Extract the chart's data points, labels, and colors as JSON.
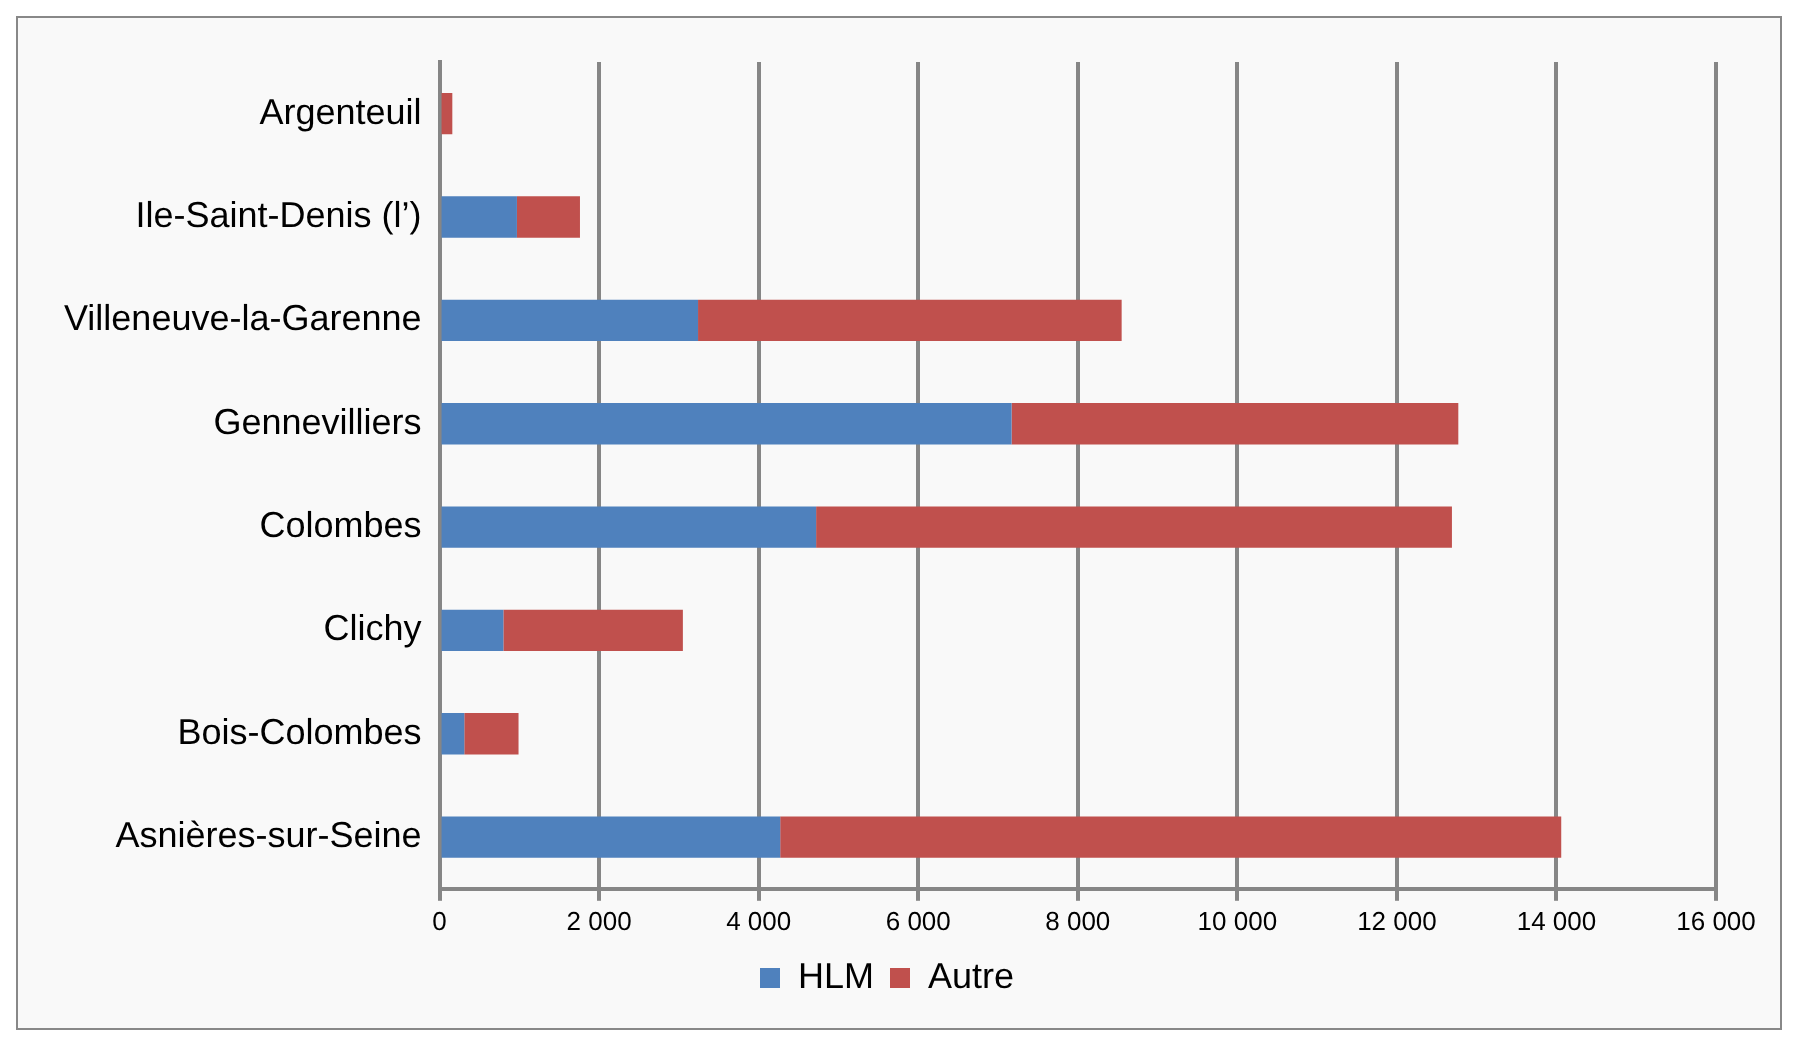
{
  "chart_data": {
    "type": "bar",
    "orientation": "horizontal",
    "stacked": true,
    "categories": [
      "Argenteuil",
      "Ile-Saint-Denis (l’)",
      "Villeneuve-la-Garenne",
      "Gennevilliers",
      "Colombes",
      "Clichy",
      "Bois-Colombes",
      "Asnières-sur-Seine"
    ],
    "series": [
      {
        "name": "HLM",
        "color": "#4f81bd",
        "values": [
          0,
          970,
          3240,
          7170,
          4720,
          800,
          310,
          4270
        ]
      },
      {
        "name": "Autre",
        "color": "#c0504d",
        "values": [
          160,
          790,
          5310,
          5600,
          7970,
          2250,
          680,
          9790
        ]
      }
    ],
    "xlim": [
      0,
      16000
    ],
    "xticks": [
      {
        "value": 0,
        "label": "0"
      },
      {
        "value": 2000,
        "label": "2 000"
      },
      {
        "value": 4000,
        "label": "4 000"
      },
      {
        "value": 6000,
        "label": "6 000"
      },
      {
        "value": 8000,
        "label": "8 000"
      },
      {
        "value": 10000,
        "label": "10 000"
      },
      {
        "value": 12000,
        "label": "12 000"
      },
      {
        "value": 14000,
        "label": "14 000"
      },
      {
        "value": 16000,
        "label": "16 000"
      }
    ],
    "grid": "x",
    "legend": "bottom"
  }
}
